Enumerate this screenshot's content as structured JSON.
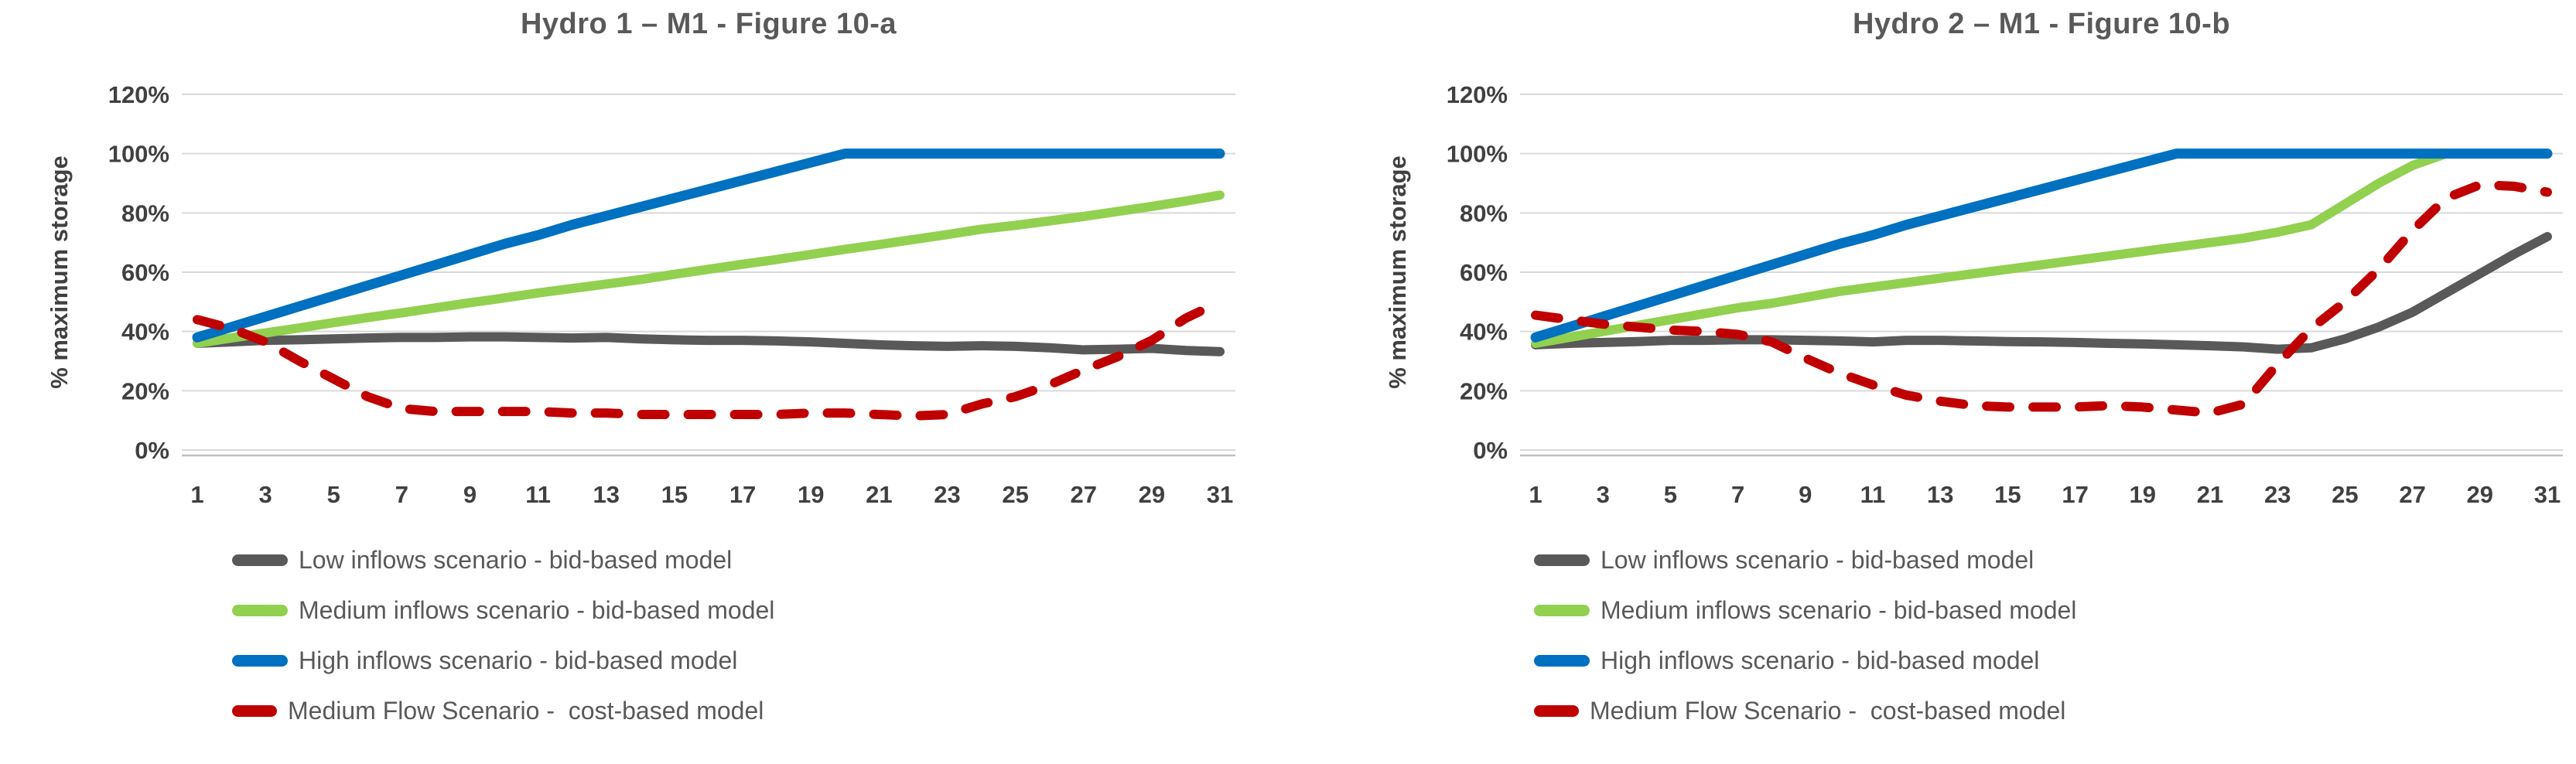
{
  "page": {
    "background": "#ffffff"
  },
  "colors": {
    "grid": "#d9d9d9",
    "axis_line": "#bfbfbf",
    "tick_text": "#404040",
    "title_text": "#595959",
    "legend_text": "#595959",
    "series_gray": "#595959",
    "series_green": "#92d050",
    "series_blue": "#0070c0",
    "series_red": "#c00000"
  },
  "chart_data": [
    {
      "type": "line",
      "title": "Hydro 1 – M1 - Figure 10-a",
      "ylabel": "% maximum storage",
      "xlabel": "",
      "ylim": [
        0,
        120
      ],
      "y_ticks": [
        0,
        20,
        40,
        60,
        80,
        100,
        120
      ],
      "y_tick_suffix": "%",
      "grid": true,
      "legend_position": "bottom-left",
      "x": [
        1,
        2,
        3,
        4,
        5,
        6,
        7,
        8,
        9,
        10,
        11,
        12,
        13,
        14,
        15,
        16,
        17,
        18,
        19,
        20,
        21,
        22,
        23,
        24,
        25,
        26,
        27,
        28,
        29,
        30,
        31
      ],
      "x_tick_labels": [
        "1",
        "3",
        "5",
        "7",
        "9",
        "11",
        "13",
        "15",
        "17",
        "19",
        "21",
        "23",
        "25",
        "27",
        "29",
        "31"
      ],
      "series": [
        {
          "name": "Low inflows scenario - bid-based model",
          "color": "#595959",
          "style": "solid",
          "values": [
            36,
            36.5,
            37,
            37.2,
            37.5,
            37.8,
            38,
            38,
            38.2,
            38.2,
            38,
            37.8,
            38,
            37.5,
            37.2,
            37,
            37,
            36.8,
            36.5,
            36,
            35.5,
            35.2,
            35,
            35.2,
            35,
            34.5,
            33.8,
            34,
            34.3,
            33.6,
            33.2
          ]
        },
        {
          "name": "Medium inflows scenario - bid-based model",
          "color": "#92d050",
          "style": "solid",
          "values": [
            36,
            37.8,
            39.5,
            41.2,
            43,
            44.7,
            46.3,
            48,
            49.7,
            51.3,
            53,
            54.5,
            56,
            57.5,
            59.3,
            61,
            62.7,
            64.3,
            66,
            67.7,
            69.3,
            71,
            72.7,
            74.5,
            75.8,
            77.3,
            78.8,
            80.5,
            82.2,
            84,
            86
          ]
        },
        {
          "name": "High inflows scenario - bid-based model",
          "color": "#0070c0",
          "style": "solid",
          "values": [
            38,
            41.5,
            45,
            48.5,
            52,
            55.5,
            59,
            62.5,
            66,
            69.5,
            72.5,
            76,
            79,
            82,
            85,
            88,
            91,
            94,
            97,
            100,
            100,
            100,
            100,
            100,
            100,
            100,
            100,
            100,
            100,
            100,
            100
          ]
        },
        {
          "name": "Medium Flow Scenario -  cost-based model",
          "color": "#c00000",
          "style": "dashed",
          "values": [
            44,
            41,
            36.5,
            30,
            24,
            18,
            14,
            13,
            13,
            13,
            13,
            12.5,
            12.5,
            12,
            12,
            12,
            12,
            12,
            12.5,
            12.5,
            12,
            11.5,
            12,
            15.5,
            18,
            22,
            27,
            31.5,
            37,
            44.5,
            50
          ]
        }
      ]
    },
    {
      "type": "line",
      "title": "Hydro 2 – M1 - Figure 10-b",
      "ylabel": "% maximum storage",
      "xlabel": "",
      "ylim": [
        0,
        120
      ],
      "y_ticks": [
        0,
        20,
        40,
        60,
        80,
        100,
        120
      ],
      "y_tick_suffix": "%",
      "grid": true,
      "legend_position": "bottom-left",
      "x": [
        1,
        2,
        3,
        4,
        5,
        6,
        7,
        8,
        9,
        10,
        11,
        12,
        13,
        14,
        15,
        16,
        17,
        18,
        19,
        20,
        21,
        22,
        23,
        24,
        25,
        26,
        27,
        28,
        29,
        30,
        31
      ],
      "x_tick_labels": [
        "1",
        "3",
        "5",
        "7",
        "9",
        "11",
        "13",
        "15",
        "17",
        "19",
        "21",
        "23",
        "25",
        "27",
        "29",
        "31"
      ],
      "series": [
        {
          "name": "Low inflows scenario - bid-based model",
          "color": "#595959",
          "style": "solid",
          "values": [
            35.5,
            36,
            36.3,
            36.6,
            37,
            37,
            37.2,
            37.2,
            37,
            36.8,
            36.5,
            37,
            37,
            36.8,
            36.6,
            36.5,
            36.3,
            36,
            35.8,
            35.5,
            35.2,
            34.8,
            34,
            34.5,
            37.5,
            41.5,
            46.5,
            53,
            59.5,
            66,
            72
          ]
        },
        {
          "name": "Medium inflows scenario - bid-based model",
          "color": "#92d050",
          "style": "solid",
          "values": [
            36,
            38,
            40,
            42,
            44,
            46,
            48,
            49.5,
            51.5,
            53.5,
            55,
            56.5,
            58,
            59.5,
            61,
            62.5,
            64,
            65.5,
            67,
            68.5,
            70,
            71.5,
            73.5,
            76,
            83,
            90,
            96,
            100,
            100,
            100,
            100
          ]
        },
        {
          "name": "High inflows scenario - bid-based model",
          "color": "#0070c0",
          "style": "solid",
          "values": [
            38,
            41.5,
            45,
            48.5,
            52,
            55.5,
            59,
            62.5,
            66,
            69.5,
            72.5,
            76,
            79,
            82,
            85,
            88,
            91,
            94,
            97,
            100,
            100,
            100,
            100,
            100,
            100,
            100,
            100,
            100,
            100,
            100,
            100
          ]
        },
        {
          "name": "Medium Flow Scenario -  cost-based model",
          "color": "#c00000",
          "style": "dashed",
          "values": [
            45.5,
            44,
            42.5,
            41.5,
            40.5,
            40,
            39,
            36.5,
            31,
            26,
            22,
            18.5,
            16.5,
            15,
            14.5,
            14.5,
            14.5,
            15,
            14.5,
            13.5,
            12.5,
            15.5,
            29,
            41,
            50,
            61,
            74,
            85,
            89.5,
            89,
            87
          ]
        }
      ]
    }
  ]
}
